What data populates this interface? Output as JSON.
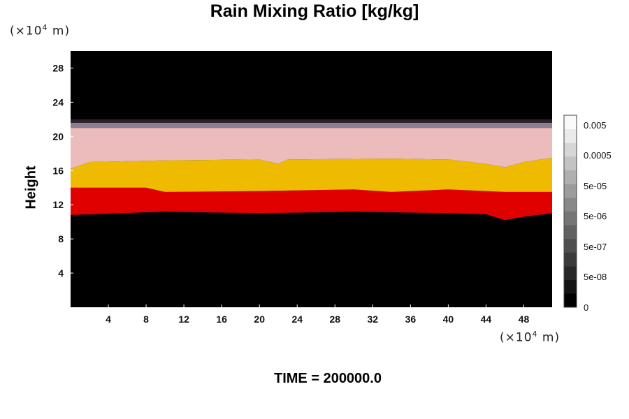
{
  "chart_data": {
    "type": "heatmap",
    "title": "Rain Mixing Ratio [kg/kg]",
    "ylabel": "Height",
    "y_unit_prefix": "(×10",
    "y_unit_exp": "4",
    "y_unit_suffix": " m)",
    "x_unit_prefix": "(×10",
    "x_unit_exp": "4",
    "x_unit_suffix": " m)",
    "x_range": [
      0,
      51
    ],
    "y_range": [
      0,
      30
    ],
    "x_ticks": [
      4,
      8,
      12,
      16,
      20,
      24,
      28,
      32,
      36,
      40,
      44,
      48
    ],
    "y_ticks": [
      4,
      8,
      12,
      16,
      20,
      24,
      28
    ],
    "background_color": "#000000",
    "bands": [
      {
        "color": "#e00000",
        "bottom": [
          [
            0,
            10.8
          ],
          [
            10,
            11.2
          ],
          [
            20,
            11.0
          ],
          [
            30,
            11.2
          ],
          [
            40,
            11.0
          ],
          [
            44,
            10.9
          ],
          [
            46,
            10.2
          ],
          [
            48,
            10.6
          ],
          [
            51,
            11.0
          ]
        ],
        "top": [
          [
            0,
            14.0
          ],
          [
            8,
            14.0
          ],
          [
            10,
            13.5
          ],
          [
            20,
            13.6
          ],
          [
            30,
            13.8
          ],
          [
            34,
            13.5
          ],
          [
            40,
            13.8
          ],
          [
            46,
            13.5
          ],
          [
            51,
            13.5
          ]
        ]
      },
      {
        "color": "#eebb00",
        "bottom": [
          [
            0,
            14.0
          ],
          [
            8,
            14.0
          ],
          [
            10,
            13.5
          ],
          [
            20,
            13.6
          ],
          [
            30,
            13.8
          ],
          [
            34,
            13.5
          ],
          [
            40,
            13.8
          ],
          [
            46,
            13.5
          ],
          [
            51,
            13.5
          ]
        ],
        "top": [
          [
            0,
            16.2
          ],
          [
            2,
            17.0
          ],
          [
            10,
            17.2
          ],
          [
            20,
            17.3
          ],
          [
            22,
            16.8
          ],
          [
            23,
            17.3
          ],
          [
            34,
            17.4
          ],
          [
            40,
            17.3
          ],
          [
            44,
            16.8
          ],
          [
            46,
            16.4
          ],
          [
            48,
            17.0
          ],
          [
            51,
            17.5
          ]
        ]
      },
      {
        "color": "#ecbcbc",
        "bottom": [
          [
            0,
            16.2
          ],
          [
            2,
            17.0
          ],
          [
            10,
            17.2
          ],
          [
            20,
            17.3
          ],
          [
            22,
            16.8
          ],
          [
            23,
            17.3
          ],
          [
            34,
            17.4
          ],
          [
            40,
            17.3
          ],
          [
            44,
            16.8
          ],
          [
            46,
            16.4
          ],
          [
            48,
            17.0
          ],
          [
            51,
            17.5
          ]
        ],
        "top": [
          [
            0,
            21.0
          ],
          [
            51,
            21.0
          ]
        ]
      },
      {
        "color": "#8a8090",
        "bottom": [
          [
            0,
            21.0
          ],
          [
            51,
            21.0
          ]
        ],
        "top": [
          [
            0,
            21.6
          ],
          [
            51,
            21.6
          ]
        ]
      },
      {
        "color": "#2a2228",
        "bottom": [
          [
            0,
            21.6
          ],
          [
            51,
            21.6
          ]
        ],
        "top": [
          [
            0,
            22.0
          ],
          [
            51,
            22.0
          ]
        ]
      }
    ],
    "colorbar": {
      "labels": [
        "0.005",
        "0.0005",
        "5e-05",
        "5e-06",
        "5e-07",
        "5e-08",
        "0"
      ],
      "colors": [
        "#000000",
        "#131313",
        "#272727",
        "#3a3a3a",
        "#4e4e4e",
        "#616161",
        "#757575",
        "#888888",
        "#9c9c9c",
        "#afafaf",
        "#c3c3c3",
        "#d6d6d6",
        "#eaeaea",
        "#fafafa"
      ]
    }
  },
  "footer": {
    "time_text": "TIME = 200000.0"
  }
}
